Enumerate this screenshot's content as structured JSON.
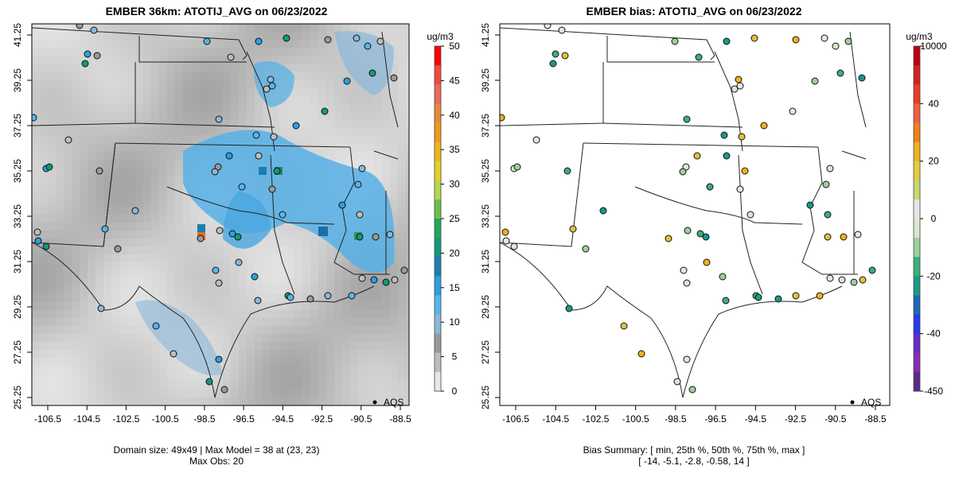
{
  "left_panel": {
    "title": "EMBER 36km: ATOTIJ_AVG on 06/23/2022",
    "x_ticks": [
      "-106.5",
      "-104.5",
      "-102.5",
      "-100.5",
      "-98.5",
      "-96.5",
      "-94.5",
      "-92.5",
      "-90.5",
      "-88.5"
    ],
    "y_ticks": [
      "41.25",
      "39.25",
      "37.25",
      "35.25",
      "33.25",
      "31.25",
      "29.25",
      "27.25",
      "25.25"
    ],
    "legend_label": "AQS",
    "footer_line1": "Domain size: 49x49 | Max Model = 38 at (23, 23)",
    "footer_line2": "Max Obs: 20",
    "colorbar": {
      "unit": "ug/m3",
      "ticks": [
        "50",
        "45",
        "40",
        "35",
        "30",
        "25",
        "20",
        "15",
        "10",
        "5",
        "0"
      ],
      "colors": [
        "#ff0000",
        "#f24a3a",
        "#ea6a5a",
        "#e88a3a",
        "#ef9b1a",
        "#f0b51a",
        "#e6d02a",
        "#b8d84a",
        "#6cc04a",
        "#22a85a",
        "#119a7a",
        "#1a7fb0",
        "#2c9fe0",
        "#56b6ec",
        "#8ab8d8",
        "#9a9a9a",
        "#bdbdbd",
        "#e6e6e6"
      ]
    }
  },
  "right_panel": {
    "title": "EMBER bias: ATOTIJ_AVG on 06/23/2022",
    "x_ticks": [
      "-106.5",
      "-104.5",
      "-102.5",
      "-100.5",
      "-98.5",
      "-96.5",
      "-94.5",
      "-92.5",
      "-90.5",
      "-88.5"
    ],
    "y_ticks": [
      "41.25",
      "39.25",
      "37.25",
      "35.25",
      "33.25",
      "31.25",
      "29.25",
      "27.25",
      "25.25"
    ],
    "legend_label": "AQS",
    "footer_line1": "Bias Summary: [ min, 25th %, 50th %, 75th %, max ]",
    "footer_line2": "[ -14,   -5.1,   -2.8,   -0.58,   14 ]",
    "colorbar": {
      "unit": "ug/m3",
      "ticks": [
        "10000",
        "40",
        "20",
        "0",
        "-20",
        "-40",
        "-450"
      ],
      "colors": [
        "#c2000e",
        "#d82020",
        "#ea3a2a",
        "#f06040",
        "#f0801a",
        "#f0b020",
        "#e0d040",
        "#c8d870",
        "#e6e6e6",
        "#d8e8d0",
        "#9ed09a",
        "#3ab07a",
        "#1a9a8a",
        "#1a6ab8",
        "#2a3ae8",
        "#6a2ac8",
        "#8a2ab8",
        "#5a2a8a"
      ]
    }
  }
}
